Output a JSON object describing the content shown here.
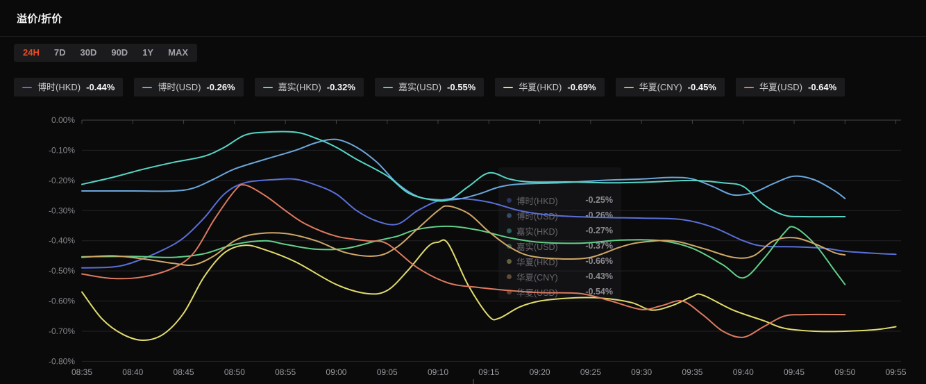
{
  "page": {
    "title": "溢价/折价"
  },
  "tabs": {
    "items": [
      "24H",
      "7D",
      "30D",
      "90D",
      "1Y",
      "MAX"
    ],
    "active": "24H",
    "active_color": "#e84e27",
    "inactive_color": "#a2a2a8"
  },
  "legend": {
    "items": [
      {
        "name": "博时(HKD)",
        "value": "-0.44%",
        "color": "#5a6fd8"
      },
      {
        "name": "博时(USD)",
        "value": "-0.26%",
        "color": "#6ba7db"
      },
      {
        "name": "嘉实(HKD)",
        "value": "-0.32%",
        "color": "#58d6c5"
      },
      {
        "name": "嘉实(USD)",
        "value": "-0.55%",
        "color": "#62d089"
      },
      {
        "name": "华夏(HKD)",
        "value": "-0.69%",
        "color": "#e2dc6d"
      },
      {
        "name": "华夏(CNY)",
        "value": "-0.45%",
        "color": "#cfa768"
      },
      {
        "name": "华夏(USD)",
        "value": "-0.64%",
        "color": "#dd7a5f"
      }
    ]
  },
  "tooltip": {
    "rows": [
      {
        "name": "博时(HKD)",
        "value": "-0.25%",
        "color": "#5a6fd8"
      },
      {
        "name": "博时(USD)",
        "value": "-0.26%",
        "color": "#6ba7db"
      },
      {
        "name": "嘉实(HKD)",
        "value": "-0.27%",
        "color": "#58d6c5"
      },
      {
        "name": "嘉实(USD)",
        "value": "-0.37%",
        "color": "#62d089"
      },
      {
        "name": "华夏(HKD)",
        "value": "-0.66%",
        "color": "#e2dc6d"
      },
      {
        "name": "华夏(CNY)",
        "value": "-0.43%",
        "color": "#cfa768"
      },
      {
        "name": "华夏(USD)",
        "value": "-0.54%",
        "color": "#dd7a5f"
      }
    ]
  },
  "chart_data": {
    "type": "line",
    "title": "溢价/折价",
    "xlabel": "",
    "ylabel": "",
    "x_ticks": [
      "08:35",
      "08:40",
      "08:45",
      "08:50",
      "08:55",
      "09:00",
      "09:05",
      "09:10",
      "09:15",
      "09:20",
      "09:25",
      "09:30",
      "09:35",
      "09:40",
      "09:45",
      "09:50",
      "09:55"
    ],
    "y_ticks": [
      "0.00%",
      "-0.10%",
      "-0.20%",
      "-0.30%",
      "-0.40%",
      "-0.50%",
      "-0.60%",
      "-0.70%",
      "-0.80%"
    ],
    "ylim": [
      -0.8,
      0.0
    ],
    "x_minutes_span": 80,
    "grid": true,
    "legend_position": "top",
    "series": [
      {
        "name": "博时(HKD)",
        "color": "#5a6fd8",
        "current": "-0.44%",
        "points": [
          [
            0,
            -0.49
          ],
          [
            3,
            -0.487
          ],
          [
            5,
            -0.472
          ],
          [
            8,
            -0.43
          ],
          [
            10,
            -0.39
          ],
          [
            12,
            -0.325
          ],
          [
            14,
            -0.245
          ],
          [
            16,
            -0.208
          ],
          [
            19,
            -0.197
          ],
          [
            21,
            -0.196
          ],
          [
            23,
            -0.215
          ],
          [
            25,
            -0.245
          ],
          [
            27,
            -0.3
          ],
          [
            29,
            -0.335
          ],
          [
            31,
            -0.345
          ],
          [
            33,
            -0.3
          ],
          [
            35,
            -0.268
          ],
          [
            37,
            -0.26
          ],
          [
            40,
            -0.272
          ],
          [
            43,
            -0.3
          ],
          [
            46,
            -0.315
          ],
          [
            50,
            -0.322
          ],
          [
            55,
            -0.325
          ],
          [
            59,
            -0.33
          ],
          [
            62,
            -0.355
          ],
          [
            65,
            -0.4
          ],
          [
            67,
            -0.418
          ],
          [
            70,
            -0.42
          ],
          [
            73,
            -0.425
          ],
          [
            75,
            -0.435
          ],
          [
            78,
            -0.442
          ],
          [
            80,
            -0.445
          ]
        ]
      },
      {
        "name": "博时(USD)",
        "color": "#6ba7db",
        "current": "-0.26%",
        "points": [
          [
            0,
            -0.235
          ],
          [
            5,
            -0.235
          ],
          [
            9,
            -0.235
          ],
          [
            11,
            -0.225
          ],
          [
            13,
            -0.195
          ],
          [
            15,
            -0.162
          ],
          [
            18,
            -0.13
          ],
          [
            21,
            -0.1
          ],
          [
            23,
            -0.075
          ],
          [
            25,
            -0.064
          ],
          [
            27,
            -0.09
          ],
          [
            29,
            -0.14
          ],
          [
            31,
            -0.21
          ],
          [
            33,
            -0.253
          ],
          [
            35,
            -0.264
          ],
          [
            37,
            -0.262
          ],
          [
            39,
            -0.245
          ],
          [
            41,
            -0.222
          ],
          [
            43,
            -0.212
          ],
          [
            47,
            -0.208
          ],
          [
            51,
            -0.2
          ],
          [
            55,
            -0.195
          ],
          [
            58,
            -0.19
          ],
          [
            60,
            -0.195
          ],
          [
            62,
            -0.22
          ],
          [
            64,
            -0.248
          ],
          [
            66,
            -0.24
          ],
          [
            68,
            -0.21
          ],
          [
            70,
            -0.186
          ],
          [
            72,
            -0.198
          ],
          [
            74,
            -0.235
          ],
          [
            75,
            -0.26
          ]
        ]
      },
      {
        "name": "嘉实(HKD)",
        "color": "#58d6c5",
        "current": "-0.32%",
        "points": [
          [
            0,
            -0.213
          ],
          [
            3,
            -0.19
          ],
          [
            6,
            -0.163
          ],
          [
            9,
            -0.14
          ],
          [
            12,
            -0.12
          ],
          [
            14,
            -0.09
          ],
          [
            16,
            -0.05
          ],
          [
            18,
            -0.04
          ],
          [
            21,
            -0.04
          ],
          [
            23,
            -0.06
          ],
          [
            25,
            -0.09
          ],
          [
            27,
            -0.13
          ],
          [
            30,
            -0.185
          ],
          [
            32,
            -0.24
          ],
          [
            34,
            -0.262
          ],
          [
            36,
            -0.265
          ],
          [
            38,
            -0.22
          ],
          [
            40,
            -0.175
          ],
          [
            42,
            -0.195
          ],
          [
            44,
            -0.205
          ],
          [
            48,
            -0.205
          ],
          [
            52,
            -0.208
          ],
          [
            56,
            -0.205
          ],
          [
            60,
            -0.2
          ],
          [
            63,
            -0.208
          ],
          [
            65,
            -0.22
          ],
          [
            67,
            -0.28
          ],
          [
            69,
            -0.315
          ],
          [
            71,
            -0.32
          ],
          [
            75,
            -0.32
          ]
        ]
      },
      {
        "name": "嘉实(USD)",
        "color": "#62d089",
        "current": "-0.55%",
        "points": [
          [
            0,
            -0.453
          ],
          [
            5,
            -0.452
          ],
          [
            9,
            -0.455
          ],
          [
            12,
            -0.443
          ],
          [
            15,
            -0.412
          ],
          [
            18,
            -0.4
          ],
          [
            20,
            -0.412
          ],
          [
            23,
            -0.428
          ],
          [
            26,
            -0.425
          ],
          [
            29,
            -0.4
          ],
          [
            31,
            -0.385
          ],
          [
            33,
            -0.362
          ],
          [
            36,
            -0.352
          ],
          [
            39,
            -0.365
          ],
          [
            42,
            -0.39
          ],
          [
            45,
            -0.405
          ],
          [
            49,
            -0.408
          ],
          [
            53,
            -0.398
          ],
          [
            57,
            -0.4
          ],
          [
            60,
            -0.425
          ],
          [
            63,
            -0.48
          ],
          [
            65,
            -0.523
          ],
          [
            67,
            -0.46
          ],
          [
            69,
            -0.375
          ],
          [
            70,
            -0.355
          ],
          [
            72,
            -0.41
          ],
          [
            74,
            -0.5
          ],
          [
            75,
            -0.545
          ]
        ]
      },
      {
        "name": "华夏(HKD)",
        "color": "#e2dc6d",
        "current": "-0.69%",
        "points": [
          [
            0,
            -0.57
          ],
          [
            2,
            -0.66
          ],
          [
            4,
            -0.71
          ],
          [
            6,
            -0.73
          ],
          [
            8,
            -0.71
          ],
          [
            10,
            -0.64
          ],
          [
            12,
            -0.52
          ],
          [
            14,
            -0.44
          ],
          [
            16,
            -0.415
          ],
          [
            18,
            -0.43
          ],
          [
            21,
            -0.47
          ],
          [
            25,
            -0.545
          ],
          [
            28,
            -0.575
          ],
          [
            30,
            -0.565
          ],
          [
            32,
            -0.5
          ],
          [
            34,
            -0.42
          ],
          [
            35,
            -0.405
          ],
          [
            36,
            -0.41
          ],
          [
            38,
            -0.55
          ],
          [
            40,
            -0.65
          ],
          [
            41,
            -0.657
          ],
          [
            43,
            -0.62
          ],
          [
            45,
            -0.6
          ],
          [
            48,
            -0.59
          ],
          [
            51,
            -0.59
          ],
          [
            54,
            -0.605
          ],
          [
            56,
            -0.63
          ],
          [
            58,
            -0.615
          ],
          [
            60,
            -0.585
          ],
          [
            61,
            -0.58
          ],
          [
            64,
            -0.63
          ],
          [
            67,
            -0.665
          ],
          [
            69,
            -0.69
          ],
          [
            72,
            -0.7
          ],
          [
            75,
            -0.7
          ],
          [
            78,
            -0.695
          ],
          [
            80,
            -0.685
          ]
        ]
      },
      {
        "name": "华夏(CNY)",
        "color": "#cfa768",
        "current": "-0.45%",
        "points": [
          [
            0,
            -0.455
          ],
          [
            3,
            -0.45
          ],
          [
            6,
            -0.46
          ],
          [
            9,
            -0.475
          ],
          [
            11,
            -0.48
          ],
          [
            13,
            -0.45
          ],
          [
            15,
            -0.4
          ],
          [
            17,
            -0.378
          ],
          [
            20,
            -0.376
          ],
          [
            23,
            -0.4
          ],
          [
            26,
            -0.44
          ],
          [
            29,
            -0.45
          ],
          [
            31,
            -0.42
          ],
          [
            33,
            -0.36
          ],
          [
            35,
            -0.3
          ],
          [
            36,
            -0.285
          ],
          [
            38,
            -0.31
          ],
          [
            40,
            -0.37
          ],
          [
            42,
            -0.42
          ],
          [
            44,
            -0.45
          ],
          [
            47,
            -0.46
          ],
          [
            50,
            -0.455
          ],
          [
            53,
            -0.42
          ],
          [
            55,
            -0.405
          ],
          [
            58,
            -0.4
          ],
          [
            61,
            -0.425
          ],
          [
            64,
            -0.455
          ],
          [
            66,
            -0.45
          ],
          [
            68,
            -0.4
          ],
          [
            70,
            -0.39
          ],
          [
            72,
            -0.41
          ],
          [
            74,
            -0.44
          ],
          [
            75,
            -0.447
          ]
        ]
      },
      {
        "name": "华夏(USD)",
        "color": "#dd7a5f",
        "current": "-0.64%",
        "points": [
          [
            0,
            -0.51
          ],
          [
            3,
            -0.525
          ],
          [
            6,
            -0.52
          ],
          [
            9,
            -0.49
          ],
          [
            11,
            -0.44
          ],
          [
            13,
            -0.33
          ],
          [
            15,
            -0.235
          ],
          [
            16,
            -0.215
          ],
          [
            18,
            -0.25
          ],
          [
            20,
            -0.3
          ],
          [
            22,
            -0.345
          ],
          [
            25,
            -0.385
          ],
          [
            28,
            -0.4
          ],
          [
            30,
            -0.41
          ],
          [
            33,
            -0.49
          ],
          [
            36,
            -0.54
          ],
          [
            39,
            -0.555
          ],
          [
            42,
            -0.565
          ],
          [
            45,
            -0.572
          ],
          [
            49,
            -0.575
          ],
          [
            52,
            -0.6
          ],
          [
            55,
            -0.628
          ],
          [
            57,
            -0.615
          ],
          [
            59,
            -0.6
          ],
          [
            61,
            -0.645
          ],
          [
            63,
            -0.7
          ],
          [
            65,
            -0.72
          ],
          [
            67,
            -0.685
          ],
          [
            69,
            -0.65
          ],
          [
            71,
            -0.645
          ],
          [
            75,
            -0.645
          ]
        ]
      }
    ]
  },
  "colors": {
    "background": "#0a0a0b",
    "grid_line": "#242428",
    "axis_line": "#46464a",
    "y_label": "#84848a",
    "x_label": "#98989e"
  }
}
